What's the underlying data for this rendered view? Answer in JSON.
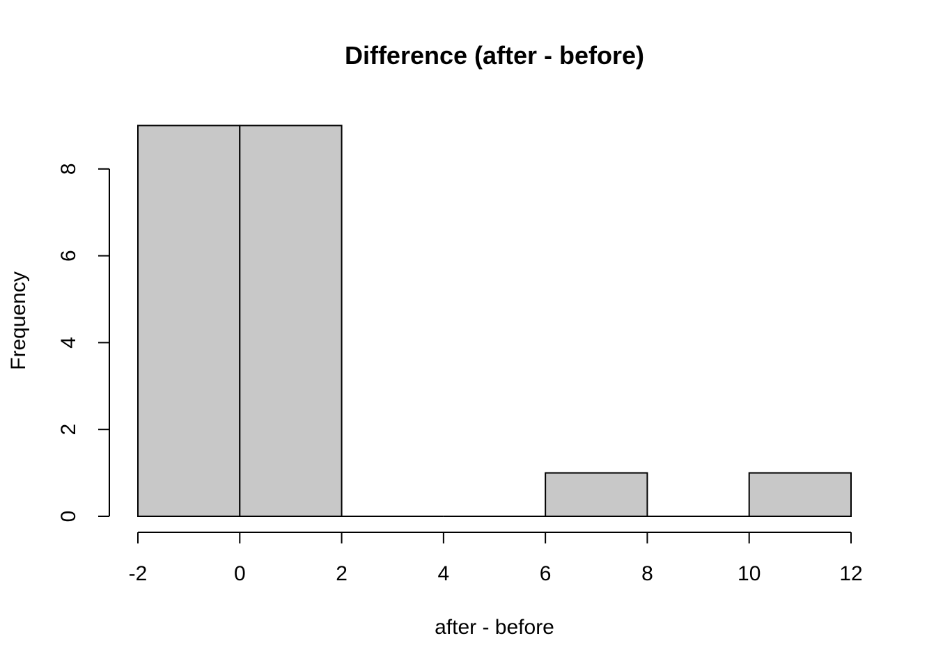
{
  "chart_data": {
    "type": "bar",
    "subtype": "histogram",
    "title": "Difference (after - before)",
    "xlabel": "after - before",
    "ylabel": "Frequency",
    "bins": [
      {
        "x0": -2,
        "x1": 0,
        "count": 9
      },
      {
        "x0": 0,
        "x1": 2,
        "count": 9
      },
      {
        "x0": 2,
        "x1": 4,
        "count": 0
      },
      {
        "x0": 4,
        "x1": 6,
        "count": 0
      },
      {
        "x0": 6,
        "x1": 8,
        "count": 1
      },
      {
        "x0": 8,
        "x1": 10,
        "count": 0
      },
      {
        "x0": 10,
        "x1": 12,
        "count": 1
      }
    ],
    "x_ticks": [
      "-2",
      "0",
      "2",
      "4",
      "6",
      "8",
      "10",
      "12"
    ],
    "y_ticks": [
      "0",
      "2",
      "4",
      "6",
      "8"
    ],
    "xlim": [
      -2,
      12
    ],
    "ylim": [
      0,
      9
    ],
    "grid": false,
    "legend": "none",
    "colors": {
      "bar_fill": "#c8c8c8",
      "bar_stroke": "#000000",
      "axis": "#000000",
      "background": "#ffffff"
    }
  }
}
